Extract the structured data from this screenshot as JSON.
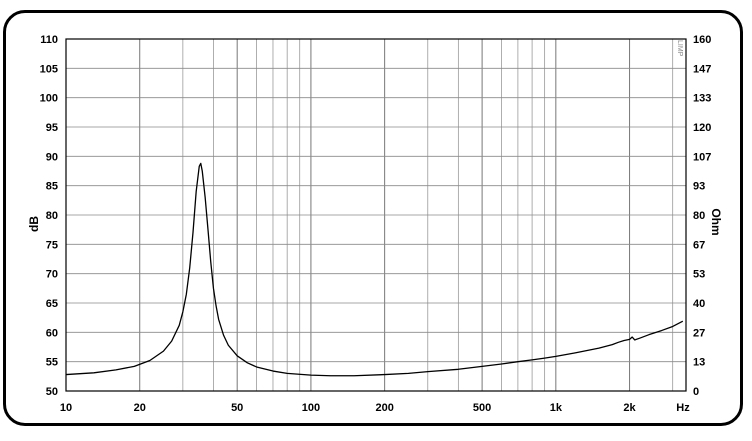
{
  "chart_data": {
    "type": "line",
    "title": "",
    "xlabel": "Hz",
    "ylabel_left": "dB",
    "ylabel_right": "Ohm",
    "xscale": "log",
    "xlim": [
      10,
      3400
    ],
    "ylim_left": [
      50,
      110
    ],
    "ylim_right": [
      0,
      160
    ],
    "grid": true,
    "legend": "none",
    "x_ticks": [
      {
        "value": 10,
        "label": "10"
      },
      {
        "value": 20,
        "label": "20"
      },
      {
        "value": 50,
        "label": "50"
      },
      {
        "value": 100,
        "label": "100"
      },
      {
        "value": 200,
        "label": "200"
      },
      {
        "value": 500,
        "label": "500"
      },
      {
        "value": 1000,
        "label": "1k"
      },
      {
        "value": 2000,
        "label": "2k"
      }
    ],
    "y_left_ticks": [
      "110",
      "105",
      "100",
      "95",
      "90",
      "85",
      "80",
      "75",
      "70",
      "65",
      "60",
      "55",
      "50"
    ],
    "y_right_ticks": [
      "160",
      "147",
      "133",
      "120",
      "107",
      "93",
      "80",
      "67",
      "53",
      "40",
      "27",
      "13",
      "0"
    ],
    "watermark": "LIMP",
    "series": [
      {
        "axis": "left",
        "color": "#000000",
        "x": [
          10,
          13,
          16,
          19,
          22,
          25,
          27,
          29,
          30,
          31,
          32,
          33,
          34,
          35,
          35.5,
          36,
          37,
          38,
          39,
          40,
          41,
          42,
          44,
          46,
          50,
          55,
          60,
          70,
          80,
          100,
          120,
          150,
          200,
          250,
          300,
          400,
          500,
          600,
          700,
          800,
          900,
          1000,
          1200,
          1500,
          1700,
          1800,
          1900,
          2000,
          2050,
          2100,
          2200,
          2400,
          2700,
          3000,
          3300
        ],
        "y": [
          52.8,
          53.1,
          53.6,
          54.2,
          55.2,
          56.8,
          58.5,
          61.2,
          63.5,
          66.5,
          71.0,
          77.0,
          84.0,
          88.3,
          88.8,
          87.5,
          83.0,
          77.5,
          72.0,
          67.5,
          64.5,
          62.2,
          59.5,
          57.8,
          56.0,
          54.8,
          54.1,
          53.4,
          53.0,
          52.7,
          52.6,
          52.6,
          52.8,
          53.0,
          53.3,
          53.7,
          54.2,
          54.6,
          55.0,
          55.3,
          55.6,
          55.9,
          56.5,
          57.3,
          57.9,
          58.3,
          58.6,
          58.8,
          59.2,
          58.7,
          59.0,
          59.6,
          60.3,
          61.0,
          61.9
        ]
      }
    ]
  }
}
